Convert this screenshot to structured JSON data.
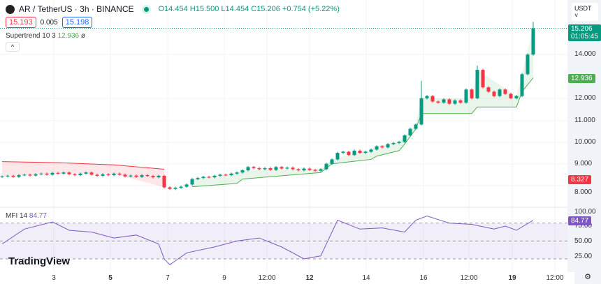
{
  "header": {
    "symbol": "AR / TetherUS · 3h · BINANCE",
    "open": "O14.454",
    "high": "H15.500",
    "low": "L14.454",
    "close": "C15.206",
    "change": "+0.754 (+5.22%)"
  },
  "quote": {
    "bid": "15.193",
    "spread": "0.005",
    "ask": "15.198"
  },
  "supertrend": {
    "label": "Supertrend 10 3",
    "value": "12.936",
    "extra": "ø"
  },
  "collapse_icon": "^",
  "mfi": {
    "label": "MFI 14",
    "value": "84.77"
  },
  "currency": "USDT ˅",
  "price_axis": [
    "14.000",
    "12.000",
    "11.000",
    "10.000",
    "9.000",
    "8.000"
  ],
  "price_tags": {
    "last": "15.206",
    "countdown": "01:05:45",
    "supertrend": "12.936",
    "upper": "8.327",
    "mfi": "84.77"
  },
  "mfi_axis": [
    "100.00",
    "75.00",
    "50.00",
    "25.00"
  ],
  "time_axis": [
    "3",
    "5",
    "7",
    "9",
    "12:00",
    "12",
    "14",
    "16",
    "12:00",
    "19",
    "12:00"
  ],
  "brand": "TradingView",
  "colors": {
    "up": "#089981",
    "down": "#f23645",
    "st_up": "#4caf50",
    "st_down": "#f23645",
    "mfi": "#7e57c2"
  },
  "chart_data": {
    "type": "candlestick",
    "first_open": 8.4,
    "closes": [
      8.42,
      8.45,
      8.4,
      8.48,
      8.5,
      8.46,
      8.52,
      8.55,
      8.5,
      8.58,
      8.55,
      8.6,
      8.52,
      8.48,
      8.55,
      8.6,
      8.5,
      8.45,
      8.52,
      8.48,
      8.55,
      8.5,
      8.42,
      8.46,
      8.4,
      8.48,
      8.44,
      8.38,
      8.45,
      7.92,
      7.85,
      7.9,
      7.95,
      8.05,
      8.3,
      8.35,
      8.4,
      8.38,
      8.45,
      8.5,
      8.48,
      8.55,
      8.6,
      8.7,
      8.85,
      8.8,
      8.75,
      8.8,
      8.72,
      8.85,
      8.78,
      8.82,
      8.75,
      8.7,
      8.78,
      8.72,
      8.68,
      8.75,
      9.0,
      9.2,
      9.5,
      9.55,
      9.4,
      9.6,
      9.5,
      9.55,
      9.65,
      9.8,
      9.75,
      9.9,
      9.95,
      10.0,
      10.3,
      10.6,
      10.8,
      12.0,
      12.1,
      11.85,
      11.8,
      11.95,
      11.75,
      11.9,
      11.8,
      12.4,
      12.0,
      13.3,
      12.5,
      12.3,
      12.1,
      12.4,
      12.2,
      12.0,
      12.1,
      13.1,
      14.0,
      15.206
    ],
    "notable_highs": [
      [
        75,
        12.8
      ],
      [
        85,
        13.5
      ],
      [
        95,
        15.5
      ]
    ],
    "supertrend_down": [
      [
        0,
        9.1
      ],
      [
        10,
        9.05
      ],
      [
        20,
        8.95
      ],
      [
        29,
        8.75
      ]
    ],
    "supertrend_up": [
      [
        34,
        7.95
      ],
      [
        42,
        8.1
      ],
      [
        43,
        8.3
      ],
      [
        57,
        8.6
      ],
      [
        59,
        9.0
      ],
      [
        66,
        9.2
      ],
      [
        67,
        9.35
      ],
      [
        71,
        9.6
      ],
      [
        72,
        9.9
      ],
      [
        74,
        10.6
      ],
      [
        75,
        11.3
      ],
      [
        84,
        11.3
      ],
      [
        85,
        11.6
      ],
      [
        92,
        11.6
      ],
      [
        93,
        12.3
      ],
      [
        95,
        12.936
      ]
    ],
    "mfi": [
      [
        0,
        45
      ],
      [
        4,
        70
      ],
      [
        9,
        82
      ],
      [
        12,
        68
      ],
      [
        16,
        65
      ],
      [
        20,
        55
      ],
      [
        24,
        60
      ],
      [
        28,
        45
      ],
      [
        29,
        20
      ],
      [
        30,
        10
      ],
      [
        33,
        30
      ],
      [
        38,
        40
      ],
      [
        42,
        50
      ],
      [
        46,
        55
      ],
      [
        50,
        40
      ],
      [
        54,
        20
      ],
      [
        57,
        25
      ],
      [
        60,
        85
      ],
      [
        64,
        70
      ],
      [
        68,
        72
      ],
      [
        72,
        65
      ],
      [
        74,
        85
      ],
      [
        76,
        92
      ],
      [
        80,
        80
      ],
      [
        84,
        78
      ],
      [
        88,
        70
      ],
      [
        90,
        75
      ],
      [
        92,
        68
      ],
      [
        95,
        84.77
      ]
    ],
    "mfi_bands": [
      80,
      50,
      20
    ],
    "ylim": [
      7.3,
      15.8
    ]
  }
}
